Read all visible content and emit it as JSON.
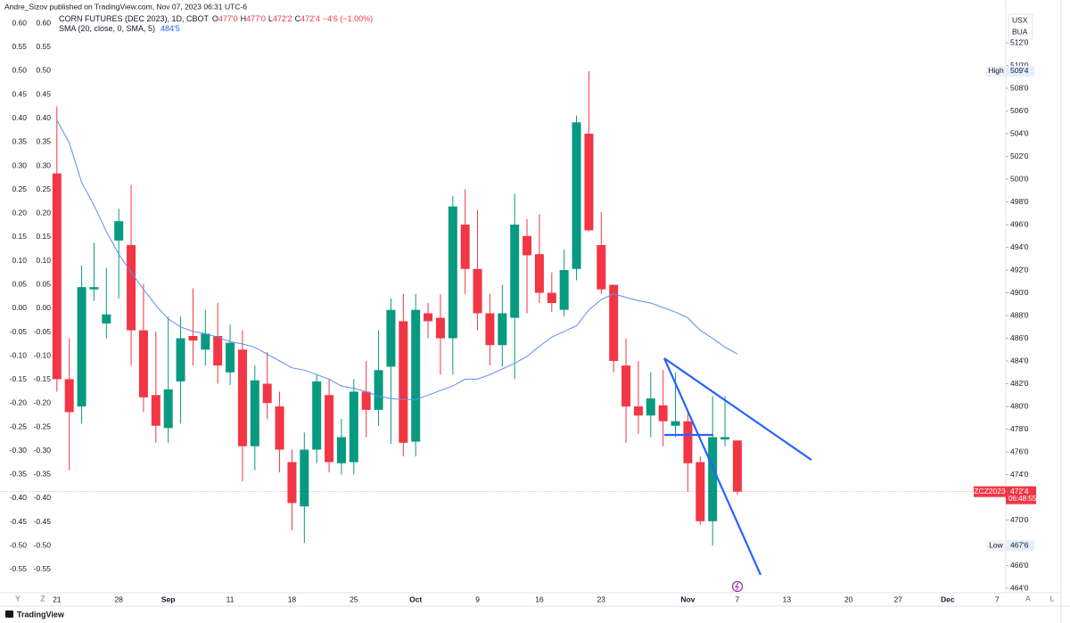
{
  "header": {
    "publisher": "Andre_Sizov published on TradingView.com, Nov 07, 2023 06:31 UTC-6"
  },
  "chart_data": {
    "type": "candlestick",
    "legend": {
      "symbol": "CORN FUTURES (DEC 2023), 1D, CBOT",
      "open_key": "O",
      "open": "477'0",
      "high_key": "H",
      "high": "477'0",
      "low_key": "L",
      "low": "472'2",
      "close_key": "C",
      "close": "472'4",
      "change": "−4'6 (−1.00%)"
    },
    "indicator": {
      "name": "SMA (20, close, 0, SMA, 5)",
      "value_label": "484'5",
      "color": "#5b8ff0",
      "values": [
        505.2,
        503.2,
        499.7,
        497.7,
        495.4,
        493.4,
        491.8,
        490.3,
        488.9,
        487.7,
        487.0,
        486.6,
        486.4,
        486.1,
        485.7,
        485.5,
        485.2,
        484.6,
        484.0,
        483.4,
        483.2,
        482.8,
        482.4,
        481.8,
        481.6,
        481.3,
        480.9,
        480.7,
        480.6,
        480.6,
        481.0,
        481.4,
        481.8,
        482.4,
        482.4,
        482.8,
        483.3,
        483.8,
        484.4,
        485.3,
        486.1,
        486.6,
        487.1,
        488.5,
        489.4,
        489.9,
        489.6,
        489.3,
        489.1,
        488.7,
        488.3,
        487.8,
        486.7,
        486.0,
        485.2,
        484.625
      ]
    },
    "open": [
      500.5,
      482.4,
      480.0,
      490.3,
      487.3,
      494.6,
      494.2,
      486.7,
      481.0,
      478.1,
      482.2,
      486.2,
      485.0,
      486.2,
      483.0,
      485.0,
      476.5,
      482.0,
      480.0,
      475.1,
      471.2,
      476.2,
      481.0,
      475.0,
      475.1,
      481.3,
      479.7,
      483.5,
      487.5,
      476.9,
      488.2,
      487.8,
      486.0,
      496.0,
      492.1,
      488.2,
      485.4,
      487.8,
      495.0,
      493.4,
      490.0,
      488.5,
      492.1,
      504.0,
      494.2,
      490.7,
      483.6,
      480.0,
      479.2,
      480.1,
      478.3,
      478.7,
      475.1,
      469.9,
      477.1,
      477
    ],
    "high": [
      506.4,
      486.0,
      492.4,
      494.4,
      492.2,
      497.4,
      499.5,
      490.8,
      486.6,
      487.9,
      487.9,
      490.4,
      488.5,
      489.1,
      487.2,
      486.7,
      483.6,
      484.8,
      481.3,
      476.2,
      477.7,
      482.8,
      482.4,
      478.9,
      482.4,
      484.0,
      486.7,
      489.5,
      489.9,
      489.9,
      489.1,
      489.9,
      498.5,
      499.1,
      497.3,
      489.9,
      490.7,
      498.7,
      496.5,
      496.9,
      491.8,
      493.8,
      505.6,
      509.5,
      497.1,
      490.7,
      486.0,
      484.0,
      483.0,
      483.2,
      483.0,
      479.7,
      475.6,
      480.9,
      480.9,
      477
    ],
    "low": [
      481.3,
      474.4,
      478.5,
      489.3,
      486.0,
      489.5,
      483.6,
      479.5,
      476.8,
      476.8,
      478.5,
      483.6,
      483.6,
      482.0,
      481.9,
      473.4,
      474.4,
      478.9,
      474.2,
      469.1,
      468.0,
      475.0,
      474.2,
      474.0,
      474.0,
      477.3,
      478.3,
      476.7,
      475.6,
      475.6,
      486.0,
      482.8,
      482.8,
      489.9,
      486.7,
      483.6,
      483.5,
      482.4,
      488.2,
      489.1,
      488.3,
      487.9,
      491.1,
      495.4,
      489.9,
      483.0,
      476.8,
      477.6,
      477.3,
      476.5,
      477.3,
      472.5,
      469.6,
      467.75,
      476.5,
      472.25
    ],
    "close": [
      482.4,
      479.5,
      490.5,
      490.5,
      488.1,
      496.3,
      486.7,
      480.8,
      478.3,
      481.5,
      486.0,
      485.8,
      486.4,
      483.6,
      485.6,
      476.5,
      482.3,
      480.3,
      476.2,
      471.5,
      476.2,
      482.2,
      475.1,
      477.3,
      481.3,
      479.7,
      483.2,
      488.5,
      476.8,
      488.5,
      487.5,
      486.0,
      497.6,
      492.1,
      488.2,
      485.4,
      488.2,
      496.0,
      493.3,
      490.0,
      489.1,
      492.0,
      505.0,
      495.5,
      490.3,
      484.0,
      480.0,
      479.2,
      480.7,
      478.7,
      478.7,
      475.0,
      469.9,
      477.3,
      477.3,
      472.5
    ],
    "up_color": "#089981",
    "down_color": "#f23645",
    "xlim": [
      -4.6,
      76.7
    ],
    "xticks": [
      {
        "value": 0,
        "label": "21"
      },
      {
        "value": 5,
        "label": "28"
      },
      {
        "value": 9,
        "label": "Sep"
      },
      {
        "value": 14,
        "label": "11"
      },
      {
        "value": 19,
        "label": "18"
      },
      {
        "value": 24,
        "label": "25"
      },
      {
        "value": 29,
        "label": "Oct"
      },
      {
        "value": 34,
        "label": "9"
      },
      {
        "value": 39,
        "label": "16"
      },
      {
        "value": 44,
        "label": "23"
      },
      {
        "value": 51,
        "label": "Nov"
      },
      {
        "value": 55,
        "label": "7"
      },
      {
        "value": 59,
        "label": "13"
      },
      {
        "value": 64,
        "label": "20"
      },
      {
        "value": 68,
        "label": "27"
      },
      {
        "value": 72,
        "label": "Dec"
      },
      {
        "value": 76,
        "label": "7"
      }
    ],
    "ylim": [
      463.61,
      514.59
    ],
    "yticks": [
      {
        "value": 464,
        "label": "464'0"
      },
      {
        "value": 466,
        "label": "466'0"
      },
      {
        "value": 470,
        "label": "470'0"
      },
      {
        "value": 474,
        "label": "474'0"
      },
      {
        "value": 476,
        "label": "476'0"
      },
      {
        "value": 478,
        "label": "478'0"
      },
      {
        "value": 480,
        "label": "480'0"
      },
      {
        "value": 482,
        "label": "482'0"
      },
      {
        "value": 484,
        "label": "484'0"
      },
      {
        "value": 486,
        "label": "486'0"
      },
      {
        "value": 488,
        "label": "488'0"
      },
      {
        "value": 490,
        "label": "490'0"
      },
      {
        "value": 492,
        "label": "492'0"
      },
      {
        "value": 494,
        "label": "494'0"
      },
      {
        "value": 496,
        "label": "496'0"
      },
      {
        "value": 498,
        "label": "498'0"
      },
      {
        "value": 500,
        "label": "500'0"
      },
      {
        "value": 502,
        "label": "502'0"
      },
      {
        "value": 504,
        "label": "504'0"
      },
      {
        "value": 506,
        "label": "506'0"
      },
      {
        "value": 508,
        "label": "508'0"
      },
      {
        "value": 510,
        "label": "510'0"
      },
      {
        "value": 512,
        "label": "512'0"
      }
    ],
    "left_axes": [
      {
        "ylim": [
          -0.599,
          0.621
        ],
        "yticks": [
          {
            "value": 0.6,
            "label": "0.60"
          },
          {
            "value": 0.55,
            "label": "0.55"
          },
          {
            "value": 0.5,
            "label": "0.50"
          },
          {
            "value": 0.45,
            "label": "0.45"
          },
          {
            "value": 0.4,
            "label": "0.40"
          },
          {
            "value": 0.35,
            "label": "0.35"
          },
          {
            "value": 0.3,
            "label": "0.30"
          },
          {
            "value": 0.25,
            "label": "0.25"
          },
          {
            "value": 0.2,
            "label": "0.20"
          },
          {
            "value": 0.15,
            "label": "0.15"
          },
          {
            "value": 0.1,
            "label": "0.10"
          },
          {
            "value": 0.05,
            "label": "0.05"
          },
          {
            "value": 0,
            "label": "0.00"
          },
          {
            "value": -0.05,
            "label": "-0.05"
          },
          {
            "value": -0.1,
            "label": "-0.10"
          },
          {
            "value": -0.15,
            "label": "-0.15"
          },
          {
            "value": -0.2,
            "label": "-0.20"
          },
          {
            "value": -0.25,
            "label": "-0.25"
          },
          {
            "value": -0.3,
            "label": "-0.30"
          },
          {
            "value": -0.35,
            "label": "-0.35"
          },
          {
            "value": -0.4,
            "label": "-0.40"
          },
          {
            "value": -0.45,
            "label": "-0.45"
          },
          {
            "value": -0.5,
            "label": "-0.50"
          },
          {
            "value": -0.55,
            "label": "-0.55"
          }
        ]
      },
      {
        "ylim": [
          -0.599,
          0.621
        ],
        "yticks": [
          {
            "value": 0.6,
            "label": "0.60"
          },
          {
            "value": 0.55,
            "label": "0.55"
          },
          {
            "value": 0.5,
            "label": "0.50"
          },
          {
            "value": 0.45,
            "label": "0.45"
          },
          {
            "value": 0.4,
            "label": "0.40"
          },
          {
            "value": 0.35,
            "label": "0.35"
          },
          {
            "value": 0.3,
            "label": "0.30"
          },
          {
            "value": 0.25,
            "label": "0.25"
          },
          {
            "value": 0.2,
            "label": "0.20"
          },
          {
            "value": 0.15,
            "label": "0.15"
          },
          {
            "value": 0.1,
            "label": "0.10"
          },
          {
            "value": 0.05,
            "label": "0.05"
          },
          {
            "value": 0,
            "label": "0.00"
          },
          {
            "value": -0.05,
            "label": "-0.05"
          },
          {
            "value": -0.1,
            "label": "-0.10"
          },
          {
            "value": -0.15,
            "label": "-0.15"
          },
          {
            "value": -0.2,
            "label": "-0.20"
          },
          {
            "value": -0.25,
            "label": "-0.25"
          },
          {
            "value": -0.3,
            "label": "-0.30"
          },
          {
            "value": -0.35,
            "label": "-0.35"
          },
          {
            "value": -0.4,
            "label": "-0.40"
          },
          {
            "value": -0.45,
            "label": "-0.45"
          },
          {
            "value": -0.5,
            "label": "-0.50"
          },
          {
            "value": -0.55,
            "label": "-0.55"
          }
        ]
      }
    ],
    "markers": [
      {
        "label": "High",
        "value": 509.5,
        "value_label": "509'4"
      },
      {
        "label": "Low",
        "value": 467.75,
        "value_label": "467'6"
      }
    ],
    "last_price": {
      "symbol": "ZCZ2023",
      "value": 472.5,
      "value_label": "472'4",
      "countdown": "06:48:55"
    },
    "currency_tags": [
      "USX",
      "BUA"
    ],
    "corner_buttons": [
      "Y",
      "Z",
      "A",
      "L"
    ]
  },
  "footer": {
    "brand": "TradingView"
  }
}
